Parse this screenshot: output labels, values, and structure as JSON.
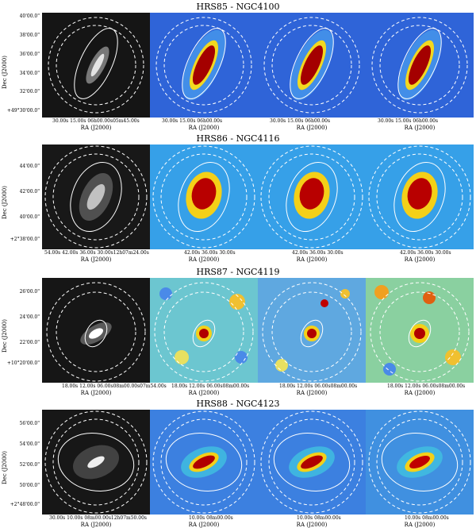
{
  "figure": {
    "rows": [
      {
        "title": "HRS85 - NGC4100",
        "ylabel": "Dec (J2000)",
        "yticks": [
          "40'00.0\"",
          "38'00.0\"",
          "36'00.0\"",
          "34'00.0\"",
          "32'00.0\"",
          "+49°30'00.0\""
        ],
        "panel_xticks": [
          "30.00s  15.00s  06h00.00s05m45.00s",
          "30.00s  15.00s  06h00.00s",
          "30.00s  15.00s  06h00.00s",
          "30.00s  15.00s  06h00.00s"
        ],
        "xlabel": "RA (J2000)"
      },
      {
        "title": "HRS86 - NGC4116",
        "ylabel": "Dec (J2000)",
        "yticks": [
          "44'00.0\"",
          "42'00.0\"",
          "40'00.0\"",
          "+2°38'00.0\""
        ],
        "panel_xticks": [
          "54.00s    42.00s  36.00s  30.00s12h07m24.00s",
          "42.00s 36.00s  30.00s",
          "42.00s 36.00s  30.00s",
          "42.00s 36.00s  30.00s"
        ],
        "xlabel": "RA (J2000)"
      },
      {
        "title": "HRS87 - NGC4119",
        "ylabel": "Dec (J2000)",
        "yticks": [
          "26'00.0\"",
          "24'00.0\"",
          "22'00.0\"",
          "+10°20'00.0\""
        ],
        "panel_xticks": [
          "18.00s  12.00s 06.00s08m00.00s07m54.00s",
          "18.00s  12.00s  06.00s08m00.00s",
          "18.00s  12.00s  06.00s08m00.00s",
          "18.00s  12.00s  06.00s08m00.00s"
        ],
        "xlabel": "RA (J2000)"
      },
      {
        "title": "HRS88 - NGC4123",
        "ylabel": "Dec (J2000)",
        "yticks": [
          "56'00.0\"",
          "54'00.0\"",
          "52'00.0\"",
          "50'00.0\"",
          "+2°48'00.0\""
        ],
        "panel_xticks": [
          "30.00s       10.00s  08m00.00s12h07m50.00s",
          "10.00s   08m00.00s",
          "10.00s   08m00.00s",
          "10.00s   08m00.00s"
        ],
        "xlabel": "RA (J2000)"
      }
    ]
  }
}
